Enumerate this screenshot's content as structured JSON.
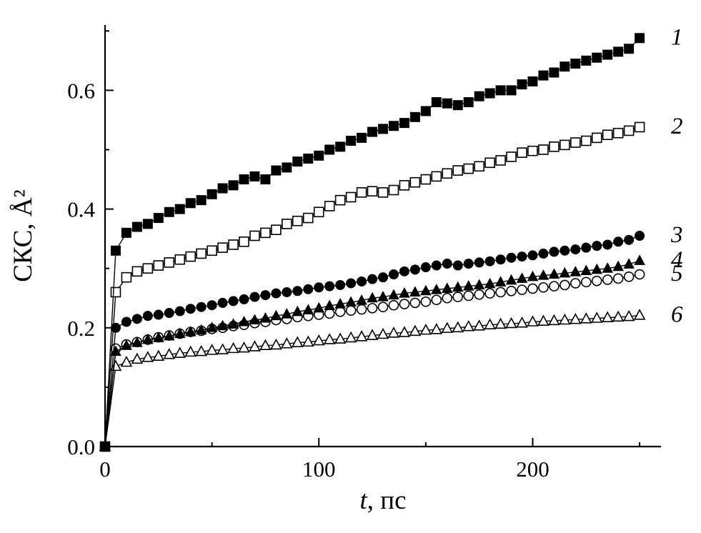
{
  "colors": {
    "foreground": "#000000",
    "background": "#ffffff"
  },
  "chart_data": {
    "type": "line",
    "title": "",
    "xlabel": "t, пс",
    "xlabel_italic_prefix": "t",
    "ylabel": "СКС, Å²",
    "xlim": [
      0,
      260
    ],
    "ylim": [
      0,
      0.71
    ],
    "grid": false,
    "legend_position": "series number labels at right edge of plot",
    "x_axis": {
      "major": [
        0,
        100,
        200
      ],
      "labels": [
        "0",
        "100",
        "200"
      ],
      "minor": [
        50,
        150,
        250
      ]
    },
    "y_axis": {
      "major": [
        0,
        0.2,
        0.4,
        0.6
      ],
      "labels": [
        "0.0",
        "0.2",
        "0.4",
        "0.6"
      ],
      "minor": [
        0.1,
        0.3,
        0.5,
        0.7
      ]
    },
    "x": [
      0,
      5,
      10,
      15,
      20,
      25,
      30,
      35,
      40,
      45,
      50,
      55,
      60,
      65,
      70,
      75,
      80,
      85,
      90,
      95,
      100,
      105,
      110,
      115,
      120,
      125,
      130,
      135,
      140,
      145,
      150,
      155,
      160,
      165,
      170,
      175,
      180,
      185,
      190,
      195,
      200,
      205,
      210,
      215,
      220,
      225,
      230,
      235,
      240,
      245,
      250
    ],
    "series": [
      {
        "label": "1",
        "marker": "square-filled",
        "values": [
          0.0,
          0.33,
          0.36,
          0.37,
          0.375,
          0.385,
          0.395,
          0.4,
          0.41,
          0.415,
          0.425,
          0.435,
          0.44,
          0.45,
          0.455,
          0.45,
          0.465,
          0.47,
          0.48,
          0.485,
          0.49,
          0.5,
          0.505,
          0.515,
          0.52,
          0.53,
          0.535,
          0.54,
          0.545,
          0.555,
          0.565,
          0.58,
          0.578,
          0.575,
          0.58,
          0.59,
          0.595,
          0.6,
          0.6,
          0.61,
          0.615,
          0.625,
          0.63,
          0.64,
          0.645,
          0.65,
          0.655,
          0.66,
          0.665,
          0.67,
          0.688
        ]
      },
      {
        "label": "2",
        "marker": "square-open",
        "values": [
          0.0,
          0.26,
          0.285,
          0.295,
          0.3,
          0.305,
          0.31,
          0.315,
          0.32,
          0.325,
          0.33,
          0.335,
          0.34,
          0.345,
          0.355,
          0.36,
          0.365,
          0.375,
          0.38,
          0.385,
          0.395,
          0.405,
          0.415,
          0.42,
          0.428,
          0.43,
          0.428,
          0.432,
          0.44,
          0.445,
          0.45,
          0.455,
          0.46,
          0.465,
          0.468,
          0.472,
          0.478,
          0.482,
          0.488,
          0.495,
          0.498,
          0.5,
          0.505,
          0.508,
          0.512,
          0.515,
          0.52,
          0.525,
          0.528,
          0.532,
          0.538
        ]
      },
      {
        "label": "3",
        "marker": "circle-filled",
        "values": [
          0.0,
          0.2,
          0.21,
          0.215,
          0.22,
          0.222,
          0.225,
          0.228,
          0.232,
          0.235,
          0.238,
          0.242,
          0.245,
          0.248,
          0.252,
          0.255,
          0.258,
          0.26,
          0.262,
          0.265,
          0.268,
          0.27,
          0.272,
          0.275,
          0.278,
          0.282,
          0.285,
          0.29,
          0.295,
          0.298,
          0.302,
          0.305,
          0.308,
          0.305,
          0.308,
          0.31,
          0.312,
          0.315,
          0.318,
          0.32,
          0.322,
          0.325,
          0.328,
          0.33,
          0.332,
          0.335,
          0.338,
          0.34,
          0.345,
          0.348,
          0.355
        ]
      },
      {
        "label": "4",
        "marker": "triangle-filled",
        "values": [
          0.0,
          0.16,
          0.17,
          0.175,
          0.18,
          0.183,
          0.186,
          0.19,
          0.193,
          0.196,
          0.2,
          0.203,
          0.206,
          0.21,
          0.213,
          0.216,
          0.22,
          0.223,
          0.227,
          0.23,
          0.233,
          0.237,
          0.24,
          0.243,
          0.246,
          0.25,
          0.252,
          0.255,
          0.258,
          0.26,
          0.262,
          0.264,
          0.266,
          0.268,
          0.27,
          0.272,
          0.274,
          0.277,
          0.28,
          0.283,
          0.286,
          0.288,
          0.29,
          0.292,
          0.294,
          0.296,
          0.298,
          0.3,
          0.303,
          0.307,
          0.313
        ]
      },
      {
        "label": "5",
        "marker": "circle-open",
        "values": [
          0.0,
          0.165,
          0.172,
          0.176,
          0.18,
          0.184,
          0.187,
          0.19,
          0.193,
          0.195,
          0.198,
          0.2,
          0.203,
          0.205,
          0.208,
          0.21,
          0.213,
          0.215,
          0.218,
          0.22,
          0.222,
          0.224,
          0.227,
          0.229,
          0.231,
          0.233,
          0.235,
          0.238,
          0.24,
          0.242,
          0.244,
          0.247,
          0.25,
          0.252,
          0.254,
          0.256,
          0.258,
          0.26,
          0.262,
          0.264,
          0.266,
          0.268,
          0.27,
          0.272,
          0.275,
          0.277,
          0.279,
          0.281,
          0.283,
          0.286,
          0.29
        ]
      },
      {
        "label": "6",
        "marker": "triangle-open",
        "values": [
          0.0,
          0.135,
          0.142,
          0.147,
          0.15,
          0.152,
          0.155,
          0.157,
          0.159,
          0.16,
          0.162,
          0.163,
          0.165,
          0.166,
          0.168,
          0.17,
          0.171,
          0.173,
          0.175,
          0.176,
          0.178,
          0.18,
          0.181,
          0.183,
          0.185,
          0.187,
          0.189,
          0.191,
          0.192,
          0.194,
          0.196,
          0.197,
          0.199,
          0.2,
          0.202,
          0.203,
          0.205,
          0.206,
          0.207,
          0.208,
          0.21,
          0.211,
          0.212,
          0.213,
          0.214,
          0.215,
          0.216,
          0.217,
          0.218,
          0.219,
          0.221
        ]
      }
    ]
  }
}
